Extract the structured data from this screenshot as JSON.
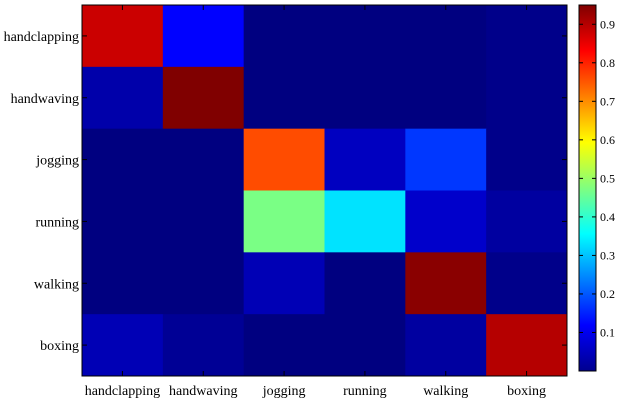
{
  "chart_data": {
    "type": "heatmap",
    "title": "",
    "xlabel": "",
    "ylabel": "",
    "x_categories": [
      "handclapping",
      "handwaving",
      "jogging",
      "running",
      "walking",
      "boxing"
    ],
    "y_categories": [
      "handclapping",
      "handwaving",
      "jogging",
      "running",
      "walking",
      "boxing"
    ],
    "values": [
      [
        0.88,
        0.12,
        0.0,
        0.0,
        0.0,
        0.01
      ],
      [
        0.04,
        0.95,
        0.0,
        0.0,
        0.0,
        0.01
      ],
      [
        0.0,
        0.0,
        0.76,
        0.06,
        0.17,
        0.01
      ],
      [
        0.0,
        0.0,
        0.47,
        0.33,
        0.07,
        0.03
      ],
      [
        0.0,
        0.0,
        0.05,
        0.0,
        0.94,
        0.01
      ],
      [
        0.05,
        0.02,
        0.0,
        0.0,
        0.03,
        0.9
      ]
    ],
    "colormap": "jet",
    "color_range": [
      0,
      0.95
    ],
    "colorbar": {
      "position": "right",
      "ticks": [
        0.1,
        0.2,
        0.3,
        0.4,
        0.5,
        0.6,
        0.7,
        0.8,
        0.9
      ],
      "tick_labels": [
        "0.1",
        "0.2",
        "0.3",
        "0.4",
        "0.5",
        "0.6",
        "0.7",
        "0.8",
        "0.9"
      ]
    },
    "grid": false
  }
}
